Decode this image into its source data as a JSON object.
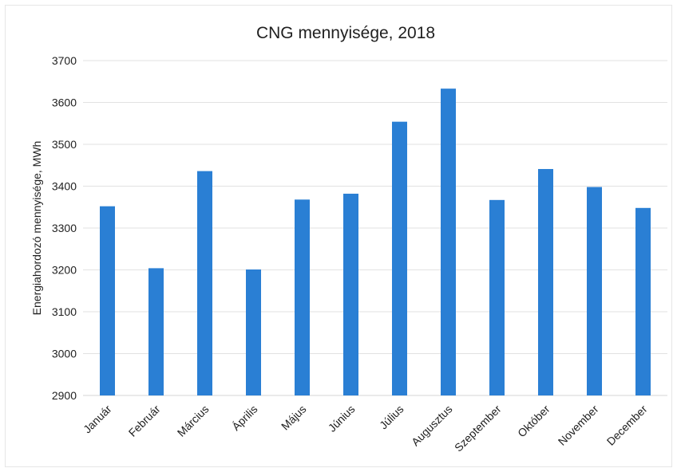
{
  "chart_data": {
    "type": "bar",
    "title": "CNG mennyisége, 2018",
    "xlabel": "",
    "ylabel": "Energiahordozó mennyisége, MWh",
    "categories": [
      "Január",
      "Február",
      "Március",
      "Április",
      "Május",
      "Június",
      "Július",
      "Augusztus",
      "Szeptember",
      "Október",
      "November",
      "December"
    ],
    "values": [
      3352,
      3204,
      3436,
      3201,
      3368,
      3382,
      3554,
      3633,
      3367,
      3441,
      3398,
      3348
    ],
    "ylim": [
      2900,
      3700
    ],
    "yticks": [
      "2900",
      "3000",
      "3100",
      "3200",
      "3300",
      "3400",
      "3500",
      "3600",
      "3700"
    ],
    "grid": true,
    "legend": "none",
    "colors": {
      "bar": "#2a7fd4",
      "grid": "#e2e2e2",
      "axis": "#d4d4d4",
      "text": "#1f1f1f"
    }
  }
}
